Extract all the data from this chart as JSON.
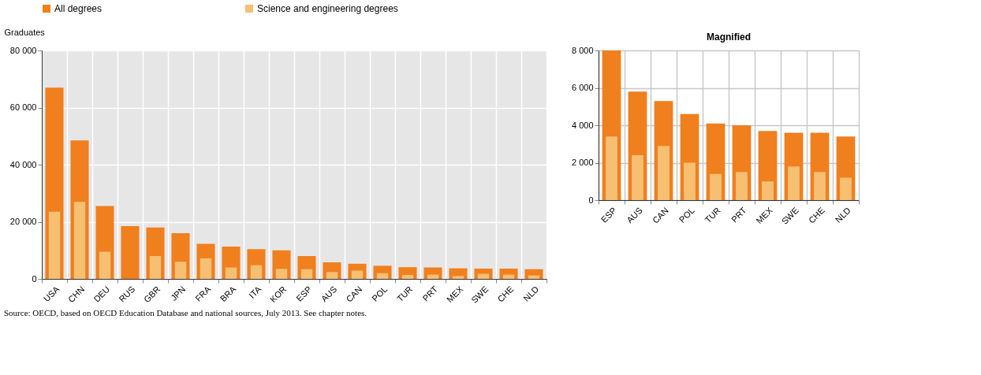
{
  "chart_data": [
    {
      "type": "bar",
      "ylabel": "Graduates",
      "legend": "top",
      "grid": true,
      "categories": [
        "USA",
        "CHN",
        "DEU",
        "RUS",
        "GBR",
        "JPN",
        "FRA",
        "BRA",
        "ITA",
        "KOR",
        "ESP",
        "AUS",
        "CAN",
        "POL",
        "TUR",
        "PRT",
        "MEX",
        "SWE",
        "CHE",
        "NLD"
      ],
      "series": [
        {
          "name": "All degrees",
          "color": "#f07f1e",
          "values": [
            67000,
            48500,
            25500,
            18500,
            18000,
            16000,
            12300,
            11300,
            10400,
            10000,
            8000,
            5800,
            5300,
            4600,
            4100,
            4000,
            3700,
            3600,
            3600,
            3400
          ]
        },
        {
          "name": "Science and engineering degrees",
          "color": "#f6bf72",
          "values": [
            23500,
            27000,
            9500,
            null,
            8000,
            6000,
            7200,
            4000,
            4800,
            3500,
            3400,
            2400,
            2900,
            2000,
            1400,
            1500,
            1000,
            1800,
            1500,
            1200
          ]
        }
      ],
      "ylim": [
        0,
        80000
      ],
      "yticks": [
        {
          "value": 0,
          "label": "0"
        },
        {
          "value": 20000,
          "label": "20 000"
        },
        {
          "value": 40000,
          "label": "40 000"
        },
        {
          "value": 60000,
          "label": "60 000"
        },
        {
          "value": 80000,
          "label": "80 000"
        }
      ],
      "annotations": [
        "Source:  OECD, based on OECD Education Database and national sources, July 2013. See chapter notes."
      ]
    },
    {
      "type": "bar",
      "title": "Magnified",
      "grid": true,
      "categories": [
        "ESP",
        "AUS",
        "CAN",
        "POL",
        "TUR",
        "PRT",
        "MEX",
        "SWE",
        "CHE",
        "NLD"
      ],
      "series": [
        {
          "name": "All degrees",
          "color": "#f07f1e",
          "values": [
            8000,
            5800,
            5300,
            4600,
            4100,
            4000,
            3700,
            3600,
            3600,
            3400
          ]
        },
        {
          "name": "Science and engineering degrees",
          "color": "#f6bf72",
          "values": [
            3400,
            2400,
            2900,
            2000,
            1400,
            1500,
            1000,
            1800,
            1500,
            1200
          ]
        }
      ],
      "ylim": [
        0,
        8000
      ],
      "yticks": [
        {
          "value": 0,
          "label": "0"
        },
        {
          "value": 2000,
          "label": "2 000"
        },
        {
          "value": 4000,
          "label": "4 000"
        },
        {
          "value": 6000,
          "label": "6 000"
        },
        {
          "value": 8000,
          "label": "8 000"
        }
      ]
    }
  ]
}
